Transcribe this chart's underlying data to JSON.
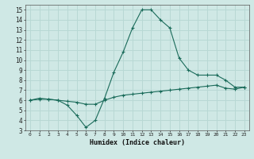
{
  "xlabel": "Humidex (Indice chaleur)",
  "ylabel": "",
  "background_color": "#cfe8e5",
  "grid_color": "#b8d8d4",
  "line_color": "#1a6b5a",
  "xlim": [
    -0.5,
    23.5
  ],
  "ylim": [
    3,
    15.5
  ],
  "xticks": [
    0,
    1,
    2,
    3,
    4,
    5,
    6,
    7,
    8,
    9,
    10,
    11,
    12,
    13,
    14,
    15,
    16,
    17,
    18,
    19,
    20,
    21,
    22,
    23
  ],
  "yticks": [
    3,
    4,
    5,
    6,
    7,
    8,
    9,
    10,
    11,
    12,
    13,
    14,
    15
  ],
  "curve1_x": [
    0,
    1,
    2,
    3,
    4,
    5,
    6,
    7,
    8,
    9,
    10,
    11,
    12,
    13,
    14,
    15,
    16,
    17,
    18,
    19,
    20,
    21,
    22,
    23
  ],
  "curve1_y": [
    6.0,
    6.1,
    6.1,
    6.0,
    5.9,
    5.8,
    5.6,
    5.6,
    6.0,
    6.3,
    6.5,
    6.6,
    6.7,
    6.8,
    6.9,
    7.0,
    7.1,
    7.2,
    7.3,
    7.4,
    7.5,
    7.2,
    7.1,
    7.3
  ],
  "curve2_x": [
    0,
    1,
    2,
    3,
    4,
    5,
    6,
    7,
    8,
    9,
    10,
    11,
    12,
    13,
    14,
    15,
    16,
    17,
    18,
    19,
    20,
    21,
    22,
    23
  ],
  "curve2_y": [
    6.0,
    6.2,
    6.1,
    6.0,
    5.5,
    4.5,
    3.3,
    4.0,
    6.2,
    8.8,
    10.8,
    13.2,
    15.0,
    15.0,
    14.0,
    13.2,
    10.2,
    9.0,
    8.5,
    8.5,
    8.5,
    8.0,
    7.3,
    7.3
  ]
}
